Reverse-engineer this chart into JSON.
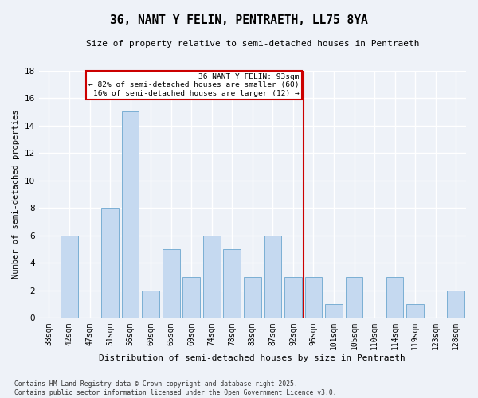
{
  "title": "36, NANT Y FELIN, PENTRAETH, LL75 8YA",
  "subtitle": "Size of property relative to semi-detached houses in Pentraeth",
  "xlabel": "Distribution of semi-detached houses by size in Pentraeth",
  "ylabel": "Number of semi-detached properties",
  "categories": [
    "38sqm",
    "42sqm",
    "47sqm",
    "51sqm",
    "56sqm",
    "60sqm",
    "65sqm",
    "69sqm",
    "74sqm",
    "78sqm",
    "83sqm",
    "87sqm",
    "92sqm",
    "96sqm",
    "101sqm",
    "105sqm",
    "110sqm",
    "114sqm",
    "119sqm",
    "123sqm",
    "128sqm"
  ],
  "values": [
    0,
    6,
    0,
    8,
    15,
    2,
    5,
    3,
    6,
    5,
    3,
    6,
    3,
    3,
    1,
    3,
    0,
    3,
    1,
    0,
    2
  ],
  "bar_color": "#c5d9f0",
  "bar_edgecolor": "#7bafd4",
  "marker_label": "36 NANT Y FELIN: 93sqm",
  "annotation_line1": "← 82% of semi-detached houses are smaller (60)",
  "annotation_line2": "16% of semi-detached houses are larger (12) →",
  "vline_color": "#cc0000",
  "background_color": "#eef2f8",
  "grid_color": "#ffffff",
  "footer": "Contains HM Land Registry data © Crown copyright and database right 2025.\nContains public sector information licensed under the Open Government Licence v3.0.",
  "ylim": [
    0,
    18
  ],
  "yticks": [
    0,
    2,
    4,
    6,
    8,
    10,
    12,
    14,
    16,
    18
  ],
  "vline_pos": 12.5
}
